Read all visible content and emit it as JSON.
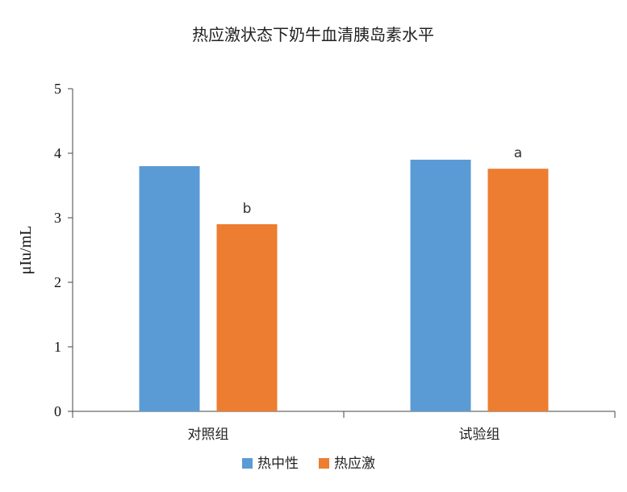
{
  "chart_data": {
    "type": "bar",
    "title": "热应激状态下奶牛血清胰岛素水平",
    "xlabel": "",
    "ylabel": "μIu/mL",
    "ylim": [
      0,
      5
    ],
    "yticks": [
      "0",
      "1",
      "2",
      "3",
      "4",
      "5"
    ],
    "categories": [
      "对照组",
      "试验组"
    ],
    "series": [
      {
        "name": "热中性",
        "values": [
          3.8,
          3.9
        ],
        "color": "#5b9bd5",
        "annotations": [
          "",
          ""
        ]
      },
      {
        "name": "热应激",
        "values": [
          2.9,
          3.76
        ],
        "color": "#ed7d31",
        "annotations": [
          "b",
          "a"
        ]
      }
    ],
    "grid": false,
    "legend_position": "bottom"
  }
}
